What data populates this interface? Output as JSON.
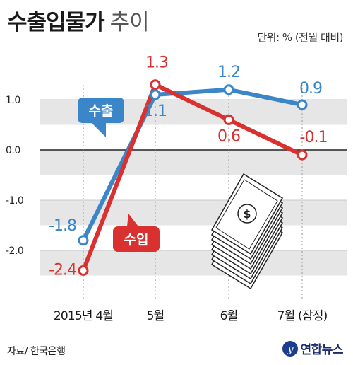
{
  "header": {
    "title_main": "수출입물가",
    "title_sub": "추이",
    "unit": "단위: % (전월 대비)"
  },
  "footer": {
    "source": "자료/ 한국은행",
    "logo_text": "연합뉴스"
  },
  "chart_data": {
    "type": "line",
    "categories": [
      "2015년 4월",
      "5월",
      "6월",
      "7월 (잠정)"
    ],
    "ylim": [
      -2.6,
      1.6
    ],
    "yticks": [
      1.0,
      0.0,
      -1.0,
      -2.0
    ],
    "ytick_labels": [
      "1.0",
      "0.0",
      "-1.0",
      "-2.0"
    ],
    "grid": true,
    "series": [
      {
        "name": "수출",
        "values": [
          -1.8,
          1.1,
          1.2,
          0.9
        ],
        "labels": [
          "-1.8",
          "1.1",
          "1.2",
          "0.9"
        ],
        "color": "#3a86c8"
      },
      {
        "name": "수입",
        "values": [
          -2.4,
          1.3,
          0.6,
          -0.1
        ],
        "labels": [
          "-2.4",
          "1.3",
          "0.6",
          "-0.1"
        ],
        "color": "#d8312f"
      }
    ]
  }
}
